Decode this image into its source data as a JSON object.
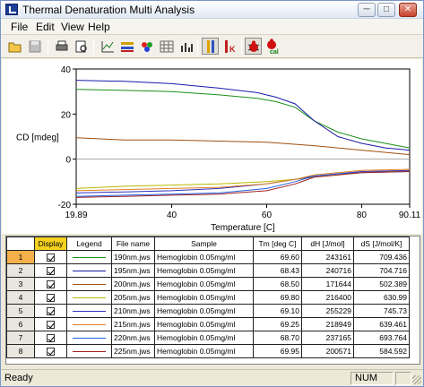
{
  "window": {
    "title": "Thermal Denaturation Multi Analysis"
  },
  "menu": [
    "File",
    "Edit",
    "View",
    "Help"
  ],
  "toolbar": {
    "buttons": [
      "open-folder",
      "save",
      "print",
      "print-preview",
      "chart-view",
      "chart-settings",
      "color-settings",
      "table-view",
      "bar-view",
      "tm-markers",
      "tm-k",
      "denaturation-calc",
      "denaturation-cal"
    ],
    "cal_label": "cal",
    "k_label": "K"
  },
  "chart_data": {
    "type": "line",
    "xlabel": "Temperature [C]",
    "ylabel": "CD [mdeg]",
    "xlim": [
      19.89,
      90.11
    ],
    "ylim": [
      -20,
      40
    ],
    "x_ticks": [
      "19.89",
      "40",
      "60",
      "80",
      "90.11"
    ],
    "y_ticks": [
      "40",
      "20",
      "0",
      "-20"
    ],
    "grid": false,
    "series": [
      {
        "color": "#1a8f1a",
        "x": [
          19.89,
          30,
          40,
          50,
          58,
          62,
          66,
          70,
          75,
          80,
          85,
          90.11
        ],
        "y": [
          31,
          30.5,
          30,
          28.5,
          27,
          25.5,
          23,
          17,
          12,
          9,
          7,
          5
        ]
      },
      {
        "color": "#1a1aa8",
        "x": [
          19.89,
          30,
          40,
          50,
          58,
          62,
          66,
          70,
          75,
          80,
          85,
          90.11
        ],
        "y": [
          35,
          34.5,
          33.5,
          31.5,
          29.5,
          27.5,
          24.5,
          17,
          10,
          7,
          5,
          4
        ]
      },
      {
        "color": "#a05010",
        "x": [
          19.89,
          30,
          40,
          50,
          60,
          70,
          80,
          90.11
        ],
        "y": [
          9.5,
          8.5,
          8.5,
          8,
          7.5,
          6,
          4,
          2
        ]
      },
      {
        "color": "#b8b800",
        "x": [
          19.89,
          30,
          40,
          50,
          60,
          66,
          70,
          75,
          80,
          90.11
        ],
        "y": [
          -13,
          -12,
          -11.5,
          -11,
          -10,
          -9,
          -8,
          -7,
          -6,
          -5
        ]
      },
      {
        "color": "#3030c0",
        "x": [
          19.89,
          30,
          40,
          50,
          60,
          66,
          70,
          75,
          80,
          90.11
        ],
        "y": [
          -15,
          -14.5,
          -14,
          -13,
          -11,
          -9,
          -7.5,
          -6.5,
          -5.5,
          -5
        ]
      },
      {
        "color": "#e08020",
        "x": [
          19.89,
          30,
          40,
          50,
          60,
          66,
          70,
          75,
          80,
          90.11
        ],
        "y": [
          -14,
          -13.5,
          -13,
          -12.5,
          -11,
          -9,
          -7,
          -6,
          -5,
          -4.5
        ]
      },
      {
        "color": "#2060e0",
        "x": [
          19.89,
          30,
          40,
          50,
          60,
          66,
          70,
          75,
          80,
          90.11
        ],
        "y": [
          -16.5,
          -16,
          -15.5,
          -15,
          -13,
          -10,
          -7.5,
          -6.5,
          -6,
          -5.5
        ]
      },
      {
        "color": "#a02020",
        "x": [
          19.89,
          30,
          40,
          50,
          60,
          66,
          70,
          75,
          80,
          90.11
        ],
        "y": [
          -17,
          -16.5,
          -16,
          -15.5,
          -14,
          -11,
          -8,
          -7,
          -6,
          -5.5
        ]
      }
    ]
  },
  "table": {
    "headers": [
      "",
      "Display",
      "Legend",
      "File name",
      "Sample",
      "Tm [deg C]",
      "dH [J/mol]",
      "dS [J/mol/K]"
    ],
    "rows": [
      {
        "n": "1",
        "color": "#1a8f1a",
        "file": "190nm.jws",
        "sample": "Hemoglobin 0.05mg/ml",
        "tm": "69.60",
        "dh": "243161",
        "ds": "709.436"
      },
      {
        "n": "2",
        "color": "#1a1aa8",
        "file": "195nm.jws",
        "sample": "Hemoglobin 0.05mg/ml",
        "tm": "68.43",
        "dh": "240716",
        "ds": "704.716"
      },
      {
        "n": "3",
        "color": "#a05010",
        "file": "200nm.jws",
        "sample": "Hemoglobin 0.05mg/ml",
        "tm": "68.50",
        "dh": "171644",
        "ds": "502.389"
      },
      {
        "n": "4",
        "color": "#b8b800",
        "file": "205nm.jws",
        "sample": "Hemoglobin 0.05mg/ml",
        "tm": "69.80",
        "dh": "216400",
        "ds": "630.99"
      },
      {
        "n": "5",
        "color": "#3030c0",
        "file": "210nm.jws",
        "sample": "Hemoglobin 0.05mg/ml",
        "tm": "69.10",
        "dh": "255229",
        "ds": "745.73"
      },
      {
        "n": "6",
        "color": "#e08020",
        "file": "215nm.jws",
        "sample": "Hemoglobin 0.05mg/ml",
        "tm": "69.25",
        "dh": "218949",
        "ds": "639.461"
      },
      {
        "n": "7",
        "color": "#2060e0",
        "file": "220nm.jws",
        "sample": "Hemoglobin 0.05mg/ml",
        "tm": "68.70",
        "dh": "237165",
        "ds": "693.764"
      },
      {
        "n": "8",
        "color": "#a02020",
        "file": "225nm.jws",
        "sample": "Hemoglobin 0.05mg/ml",
        "tm": "69.95",
        "dh": "200571",
        "ds": "584.592"
      }
    ]
  },
  "status": {
    "left": "Ready",
    "num": "NUM"
  }
}
